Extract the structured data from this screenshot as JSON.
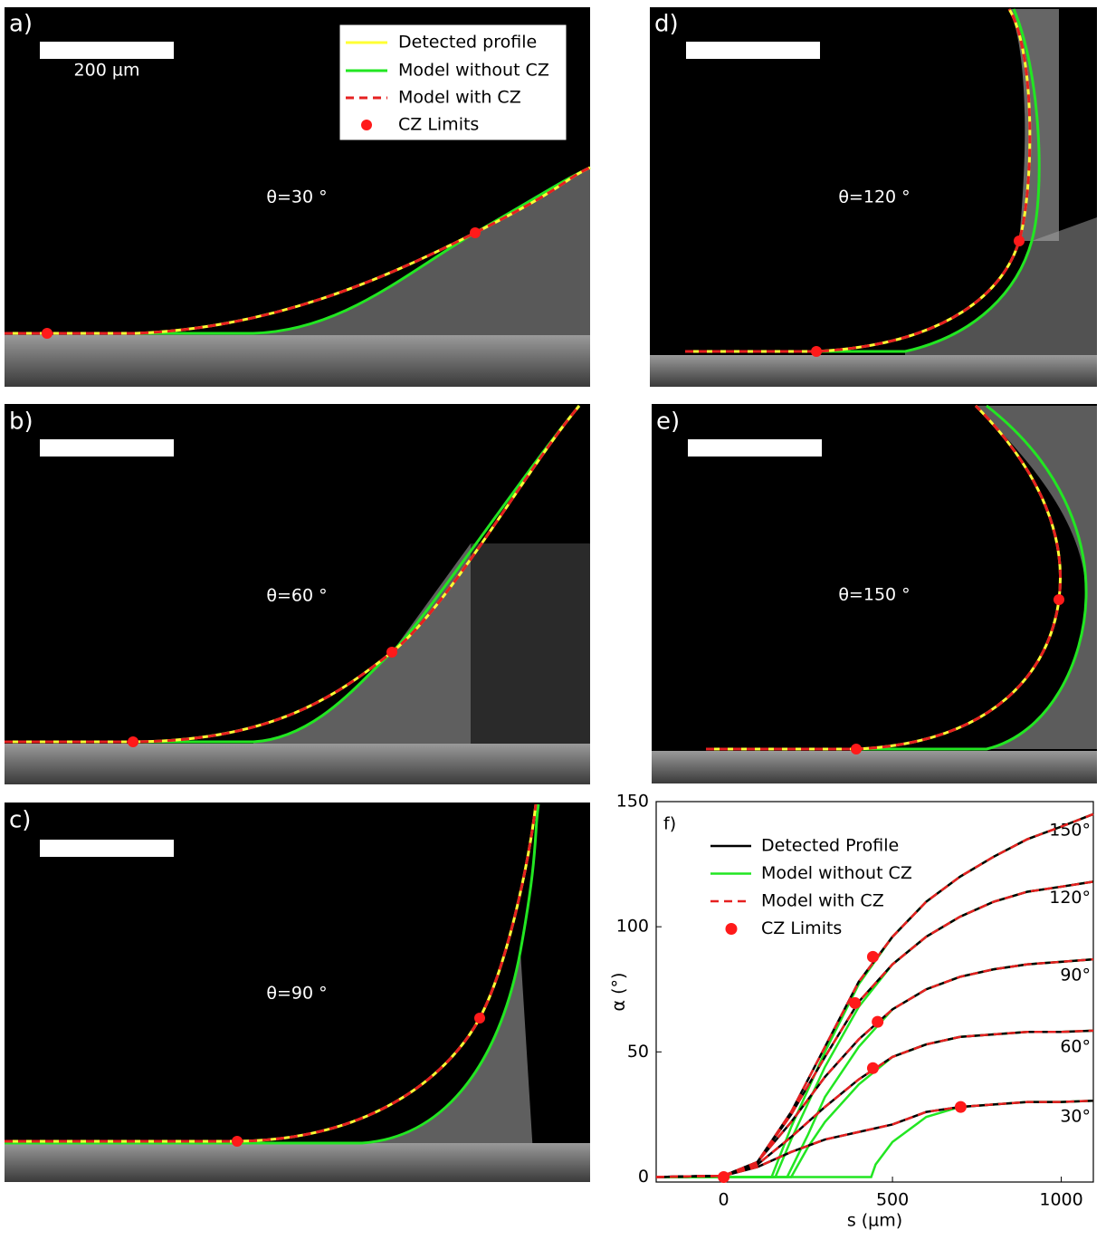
{
  "panels": [
    {
      "label": "a)",
      "scale_label": "200 µm",
      "angle": "θ=30 °",
      "legend": [
        "Detected profile",
        "Model without CZ",
        "Model with CZ",
        "CZ Limits"
      ]
    },
    {
      "label": "b)",
      "angle": "θ=60 °"
    },
    {
      "label": "c)",
      "angle": "θ=90 °"
    },
    {
      "label": "d)",
      "angle": "θ=120 °"
    },
    {
      "label": "e)",
      "angle": "θ=150 °"
    }
  ],
  "chart_data": {
    "type": "line",
    "title": "f)",
    "xlabel": "s (µm)",
    "ylabel": "α (°)",
    "xlim": [
      -200,
      1095
    ],
    "ylim": [
      -2,
      150
    ],
    "xticks": [
      0,
      500,
      1000
    ],
    "yticks": [
      0,
      50,
      100,
      150
    ],
    "series": [
      {
        "name": "Detected Profile",
        "color": "#000000",
        "curves": [
          {
            "label": "30°",
            "x": [
              -200,
              0,
              100,
              200,
              300,
              400,
              500,
              600,
              700,
              800,
              900,
              1000,
              1095
            ],
            "values": [
              0,
              0.5,
              4,
              10,
              15,
              18,
              21,
              26,
              28,
              29,
              30,
              30,
              30.5
            ]
          },
          {
            "label": "60°",
            "x": [
              -200,
              0,
              100,
              200,
              300,
              400,
              500,
              600,
              700,
              800,
              900,
              1000,
              1095
            ],
            "values": [
              0,
              0.5,
              5,
              16,
              28,
              39,
              48,
              53,
              56,
              57,
              58,
              58,
              58.5
            ]
          },
          {
            "label": "90°",
            "x": [
              -200,
              0,
              100,
              200,
              300,
              400,
              500,
              600,
              700,
              800,
              900,
              1000,
              1095
            ],
            "values": [
              0,
              0.5,
              6,
              22,
              40,
              55,
              67,
              75,
              80,
              83,
              85,
              86,
              87
            ]
          },
          {
            "label": "120°",
            "x": [
              -200,
              0,
              100,
              200,
              300,
              400,
              500,
              600,
              700,
              800,
              900,
              1000,
              1095
            ],
            "values": [
              0,
              0.5,
              6,
              25,
              48,
              70,
              85,
              96,
              104,
              110,
              114,
              116,
              118
            ]
          },
          {
            "label": "150°",
            "x": [
              -200,
              0,
              100,
              200,
              300,
              400,
              500,
              600,
              700,
              800,
              900,
              1000,
              1095
            ],
            "values": [
              0,
              0.5,
              6,
              26,
              52,
              78,
              96,
              110,
              120,
              128,
              135,
              140,
              145
            ]
          }
        ]
      },
      {
        "name": "Model without CZ",
        "color": "#22e622",
        "curves": [
          {
            "x": [
              -200,
              437,
              450,
              500,
              600,
              700,
              800,
              900,
              1000,
              1095
            ],
            "values": [
              0,
              0,
              5,
              14,
              24,
              28,
              29,
              30,
              30,
              30.5
            ]
          },
          {
            "x": [
              -200,
              200,
              250,
              300,
              400,
              500,
              600,
              700,
              800,
              900,
              1000,
              1095
            ],
            "values": [
              0,
              0,
              12,
              22,
              37,
              48,
              53,
              56,
              57,
              58,
              58,
              58.5
            ]
          },
          {
            "x": [
              -200,
              188,
              250,
              300,
              400,
              500,
              600,
              700,
              800,
              900,
              1000,
              1095
            ],
            "values": [
              0,
              0,
              17,
              32,
              52,
              67,
              75,
              80,
              83,
              85,
              86,
              87
            ]
          },
          {
            "x": [
              -200,
              153,
              200,
              300,
              400,
              500,
              600,
              700,
              800,
              900,
              1000,
              1095
            ],
            "values": [
              0,
              0,
              15,
              44,
              68,
              85,
              96,
              104,
              110,
              114,
              116,
              118
            ]
          },
          {
            "x": [
              -200,
              142,
              200,
              300,
              400,
              500,
              600,
              700,
              800,
              900,
              1000,
              1095
            ],
            "values": [
              0,
              0,
              20,
              50,
              77,
              96,
              110,
              120,
              128,
              135,
              140,
              145
            ]
          }
        ]
      },
      {
        "name": "Model with CZ",
        "color": "#e62020",
        "dashed": true,
        "curves": [
          {
            "x": [
              -200,
              0,
              100,
              200,
              300,
              400,
              500,
              600,
              700,
              800,
              900,
              1000,
              1095
            ],
            "values": [
              0,
              0.5,
              4,
              10,
              15,
              18,
              21,
              26,
              28,
              29,
              30,
              30,
              30.5
            ]
          },
          {
            "x": [
              -200,
              0,
              100,
              200,
              300,
              400,
              500,
              600,
              700,
              800,
              900,
              1000,
              1095
            ],
            "values": [
              0,
              0.5,
              5,
              16,
              28,
              39,
              48,
              53,
              56,
              57,
              58,
              58,
              58.5
            ]
          },
          {
            "x": [
              -200,
              0,
              100,
              200,
              300,
              400,
              500,
              600,
              700,
              800,
              900,
              1000,
              1095
            ],
            "values": [
              0,
              0.5,
              6,
              22,
              40,
              55,
              67,
              75,
              80,
              83,
              85,
              86,
              87
            ]
          },
          {
            "x": [
              -200,
              0,
              100,
              200,
              300,
              400,
              500,
              600,
              700,
              800,
              900,
              1000,
              1095
            ],
            "values": [
              0,
              0.5,
              6,
              25,
              48,
              70,
              85,
              96,
              104,
              110,
              114,
              116,
              118
            ]
          },
          {
            "x": [
              -200,
              0,
              100,
              200,
              300,
              400,
              500,
              600,
              700,
              800,
              900,
              1000,
              1095
            ],
            "values": [
              0,
              0.5,
              6,
              26,
              52,
              78,
              96,
              110,
              120,
              128,
              135,
              140,
              145
            ]
          }
        ]
      },
      {
        "name": "CZ Limits",
        "color": "#ff1a1a",
        "x": [
          0,
          702,
          442,
          456,
          389,
          442
        ],
        "values": [
          0,
          28,
          43.5,
          62,
          69.5,
          88
        ]
      }
    ]
  }
}
